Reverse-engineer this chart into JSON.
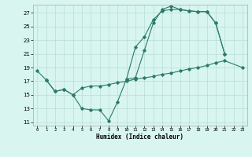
{
  "xlabel": "Humidex (Indice chaleur)",
  "bg_color": "#d8f5f0",
  "line_color": "#2d7a6a",
  "grid_color": "#b8ddd8",
  "xlim": [
    -0.5,
    23.5
  ],
  "ylim": [
    10.5,
    28.2
  ],
  "xticks": [
    0,
    1,
    2,
    3,
    4,
    5,
    6,
    7,
    8,
    9,
    10,
    11,
    12,
    13,
    14,
    15,
    16,
    17,
    18,
    19,
    20,
    21,
    22,
    23
  ],
  "yticks": [
    11,
    13,
    15,
    17,
    19,
    21,
    23,
    25,
    27
  ],
  "line_a_x": [
    0,
    1,
    2,
    3,
    4,
    5,
    6,
    7,
    8,
    9,
    10,
    11,
    12,
    13,
    14,
    15,
    16,
    17,
    18,
    19,
    20,
    21
  ],
  "line_a_y": [
    18.5,
    17.2,
    15.5,
    15.8,
    15.0,
    13.0,
    12.8,
    12.8,
    11.2,
    14.0,
    17.3,
    17.5,
    21.5,
    25.5,
    27.5,
    28.0,
    27.5,
    27.3,
    27.2,
    27.2,
    25.5,
    21.0
  ],
  "line_b_x": [
    10,
    11,
    12,
    13,
    14,
    15,
    16,
    17,
    18,
    19,
    20,
    21
  ],
  "line_b_y": [
    17.3,
    22.0,
    23.5,
    26.0,
    27.3,
    27.5,
    27.5,
    27.3,
    27.2,
    27.2,
    25.5,
    21.0
  ],
  "line_c_x": [
    1,
    2,
    3,
    4,
    5,
    6,
    7,
    8,
    9,
    10,
    11,
    12,
    13,
    14,
    15,
    16,
    17,
    18,
    19,
    20,
    21,
    23
  ],
  "line_c_y": [
    17.2,
    15.5,
    15.8,
    15.0,
    16.0,
    16.3,
    16.3,
    16.5,
    16.8,
    17.0,
    17.3,
    17.5,
    17.7,
    18.0,
    18.2,
    18.5,
    18.8,
    19.0,
    19.3,
    19.7,
    20.0,
    19.0
  ]
}
